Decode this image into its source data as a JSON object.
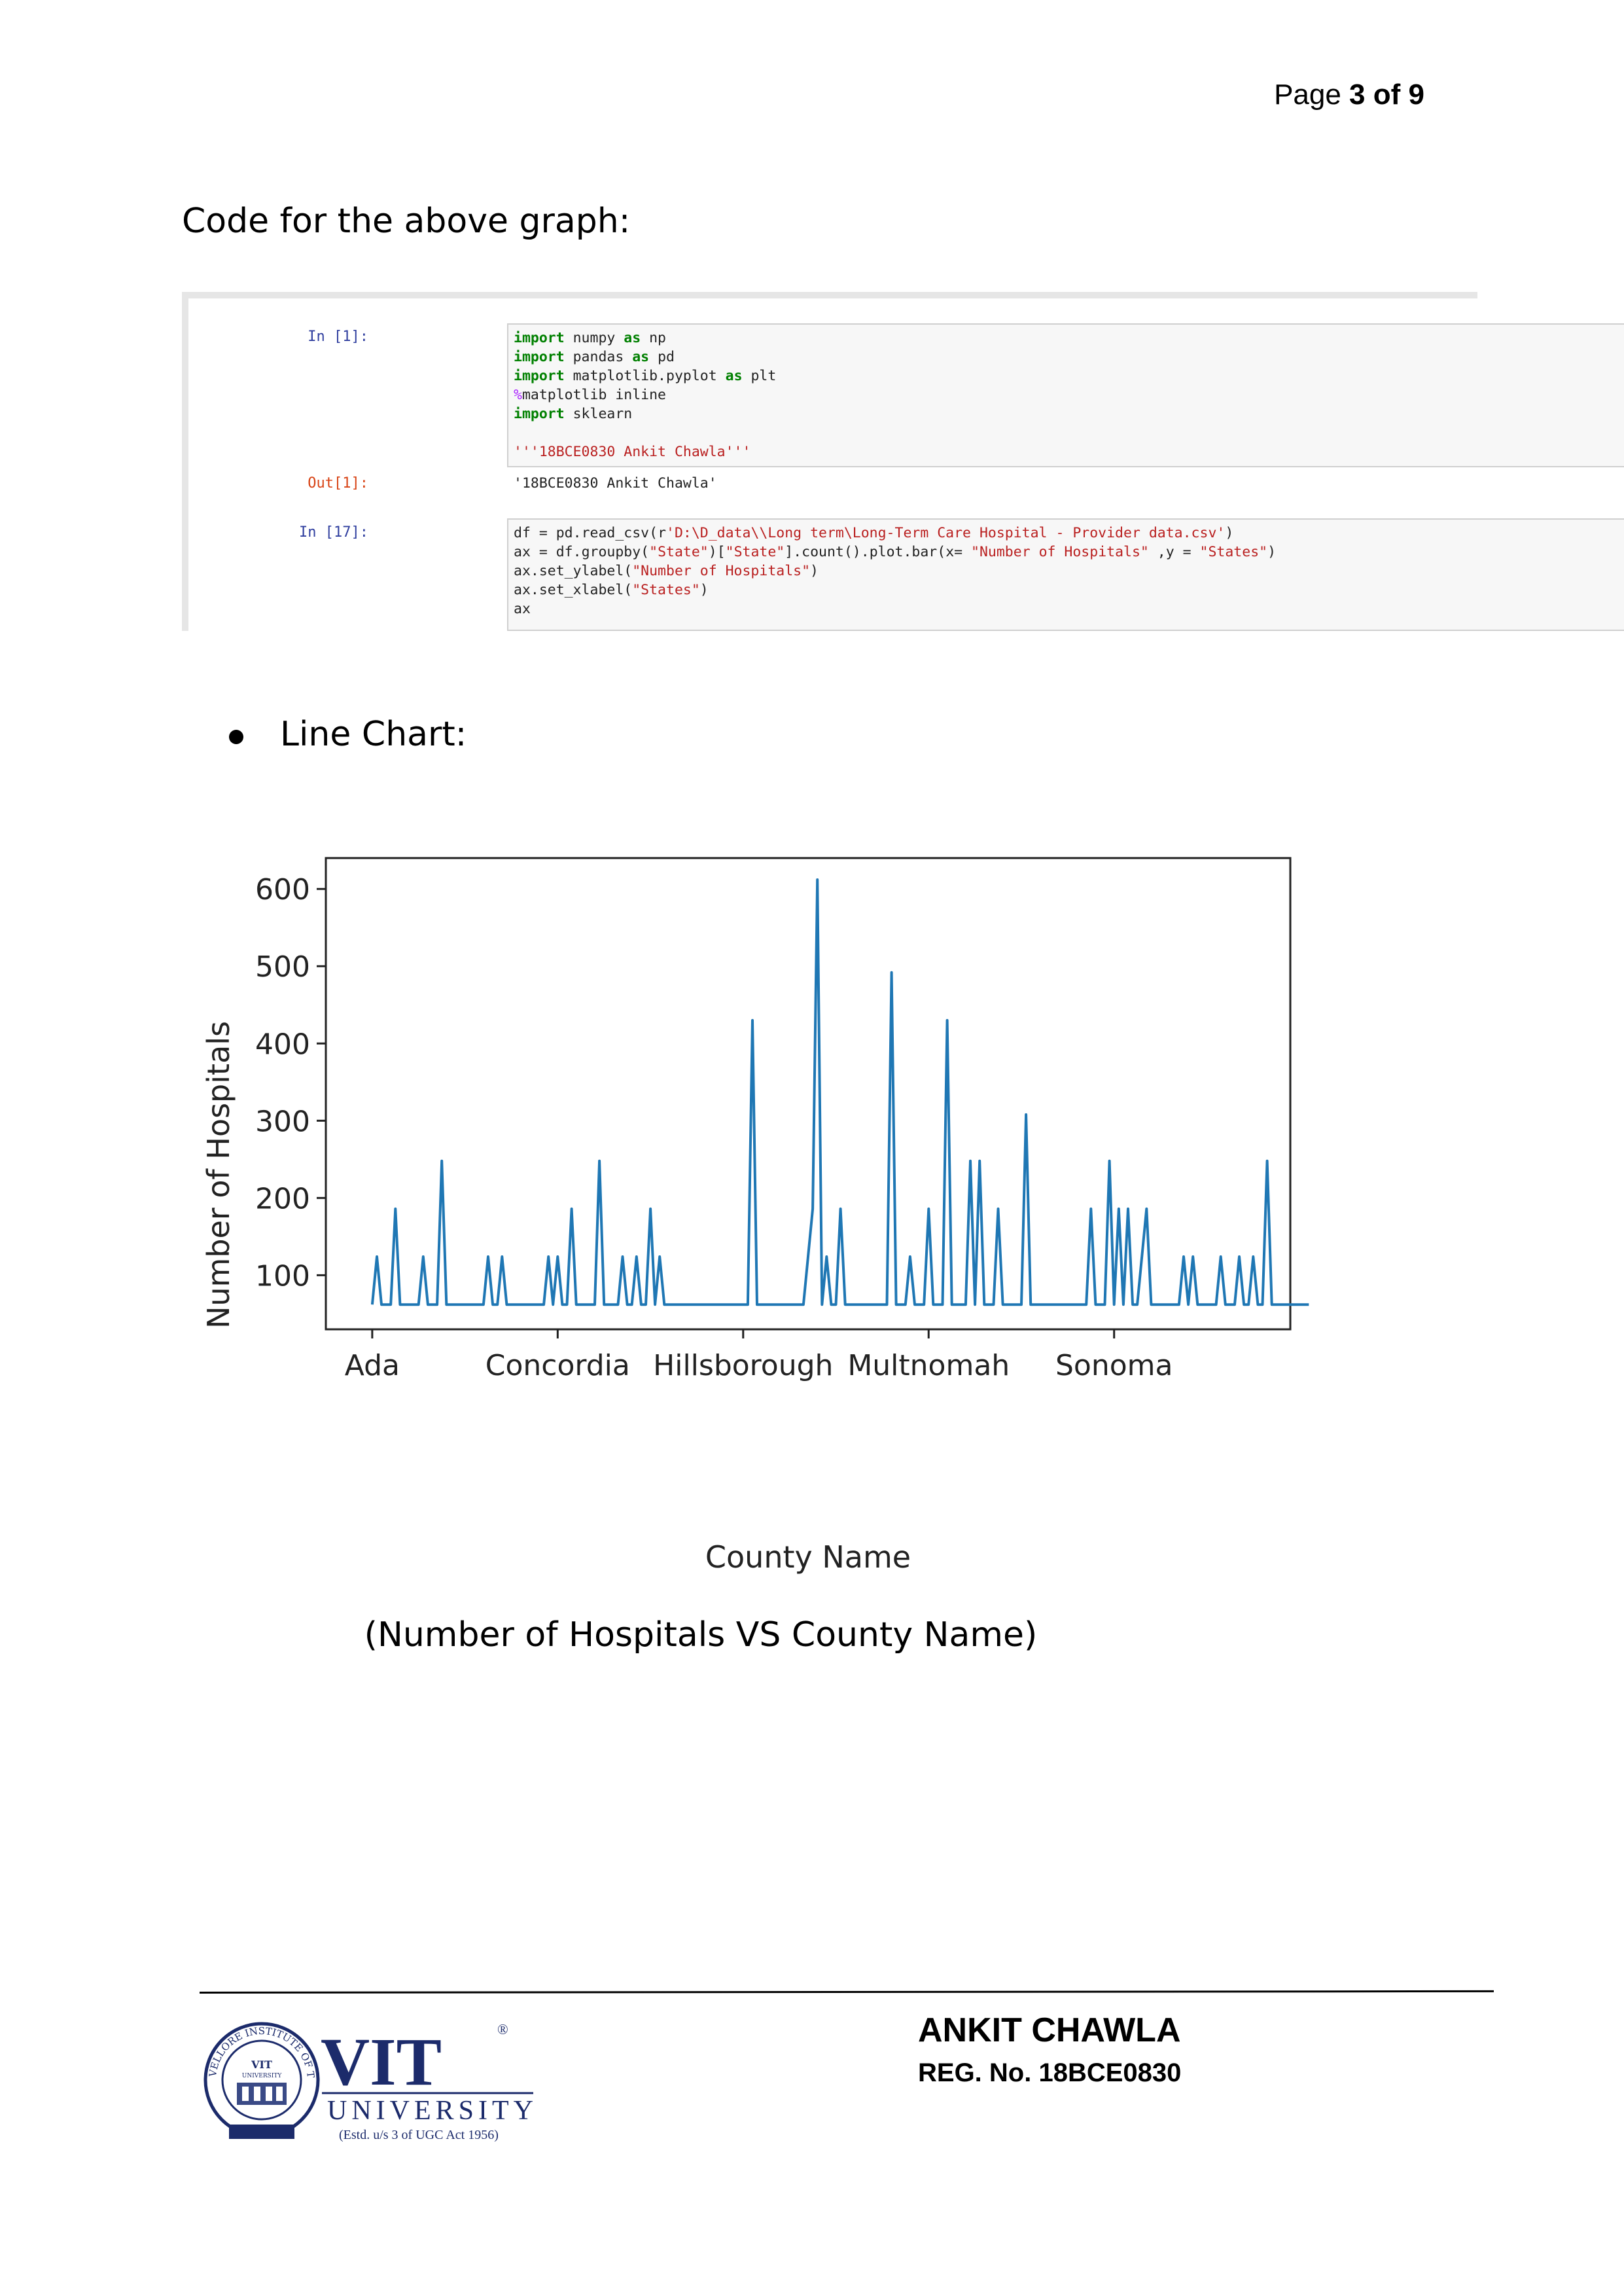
{
  "header": {
    "page_prefix": "Page ",
    "page_current": "3",
    "page_of": " of ",
    "page_total": "9"
  },
  "code_heading": "Code for the above graph:",
  "notebook": {
    "cell1_prompt": "In [1]:",
    "cell1_lines": [
      [
        {
          "t": "import",
          "c": "kw"
        },
        {
          "t": " numpy "
        },
        {
          "t": "as",
          "c": "kw"
        },
        {
          "t": " np"
        }
      ],
      [
        {
          "t": "import",
          "c": "kw"
        },
        {
          "t": " pandas "
        },
        {
          "t": "as",
          "c": "kw"
        },
        {
          "t": " pd"
        }
      ],
      [
        {
          "t": "import",
          "c": "kw"
        },
        {
          "t": " matplotlib.pyplot "
        },
        {
          "t": "as",
          "c": "kw"
        },
        {
          "t": " plt"
        }
      ],
      [
        {
          "t": "%",
          "c": "mag"
        },
        {
          "t": "matplotlib inline"
        }
      ],
      [
        {
          "t": "import",
          "c": "kw"
        },
        {
          "t": " sklearn"
        }
      ],
      [
        {
          "t": ""
        }
      ],
      [
        {
          "t": "'''18BCE0830 Ankit Chawla'''",
          "c": "str"
        }
      ]
    ],
    "out1_prompt": "Out[1]:",
    "out1_text": "'18BCE0830 Ankit Chawla'",
    "cell2_prompt": "In [17]:",
    "cell2_lines": [
      [
        {
          "t": "df "
        },
        {
          "t": "="
        },
        {
          "t": " pd.read_csv(r"
        },
        {
          "t": "'D:\\D_data\\\\Long term\\Long-Term Care Hospital - Provider data.csv'",
          "c": "str"
        },
        {
          "t": ")"
        }
      ],
      [
        {
          "t": "ax "
        },
        {
          "t": "="
        },
        {
          "t": " df.groupby("
        },
        {
          "t": "\"State\"",
          "c": "str"
        },
        {
          "t": ")["
        },
        {
          "t": "\"State\"",
          "c": "str"
        },
        {
          "t": "].count().plot.bar(x= "
        },
        {
          "t": "\"Number of Hospitals\"",
          "c": "str"
        },
        {
          "t": " ,y = "
        },
        {
          "t": "\"States\"",
          "c": "str"
        },
        {
          "t": ")"
        }
      ],
      [
        {
          "t": "ax.set_ylabel("
        },
        {
          "t": "\"Number of Hospitals\"",
          "c": "str"
        },
        {
          "t": ")"
        }
      ],
      [
        {
          "t": "ax.set_xlabel("
        },
        {
          "t": "\"States\"",
          "c": "str"
        },
        {
          "t": ")"
        }
      ],
      [
        {
          "t": "ax"
        }
      ]
    ]
  },
  "bullet_label": "Line Chart:",
  "chart_data": {
    "type": "line",
    "title": "",
    "xlabel": "County Name",
    "ylabel": "Number of Hospitals",
    "ylim": [
      30,
      640
    ],
    "yticks": [
      100,
      200,
      300,
      400,
      500,
      600
    ],
    "x_tick_labels": [
      "Ada",
      "Concordia",
      "Hillsborough",
      "Multnomah",
      "Sonoma"
    ],
    "x_tick_positions": [
      0,
      40,
      80,
      120,
      160
    ],
    "xlim": [
      -10,
      198
    ],
    "grid": false,
    "color": "#1f77b4",
    "series": [
      {
        "values": [
          62,
          124,
          62,
          62,
          62,
          186,
          62,
          62,
          62,
          62,
          62,
          124,
          62,
          62,
          62,
          248,
          62,
          62,
          62,
          62,
          62,
          62,
          62,
          62,
          62,
          124,
          62,
          62,
          124,
          62,
          62,
          62,
          62,
          62,
          62,
          62,
          62,
          62,
          124,
          62,
          124,
          62,
          62,
          186,
          62,
          62,
          62,
          62,
          62,
          248,
          62,
          62,
          62,
          62,
          124,
          62,
          62,
          124,
          62,
          62,
          186,
          62,
          124,
          62,
          62,
          62,
          62,
          62,
          62,
          62,
          62,
          62,
          62,
          62,
          62,
          62,
          62,
          62,
          62,
          62,
          62,
          62,
          430,
          62,
          62,
          62,
          62,
          62,
          62,
          62,
          62,
          62,
          62,
          62,
          124,
          186,
          612,
          62,
          124,
          62,
          62,
          186,
          62,
          62,
          62,
          62,
          62,
          62,
          62,
          62,
          62,
          62,
          492,
          62,
          62,
          62,
          124,
          62,
          62,
          62,
          186,
          62,
          62,
          62,
          430,
          62,
          62,
          62,
          62,
          248,
          62,
          248,
          62,
          62,
          62,
          186,
          62,
          62,
          62,
          62,
          62,
          308,
          62,
          62,
          62,
          62,
          62,
          62,
          62,
          62,
          62,
          62,
          62,
          62,
          62,
          186,
          62,
          62,
          62,
          248,
          62,
          186,
          62,
          186,
          62,
          62,
          124,
          186,
          62,
          62,
          62,
          62,
          62,
          62,
          62,
          124,
          62,
          124,
          62,
          62,
          62,
          62,
          62,
          124,
          62,
          62,
          62,
          124,
          62,
          62,
          124,
          62,
          62,
          248,
          62,
          62,
          62,
          62,
          62,
          62,
          62,
          62,
          62
        ]
      }
    ]
  },
  "caption": "(Number of Hospitals VS County Name)",
  "footer": {
    "author": "ANKIT CHAWLA",
    "reg_no": "REG. No. 18BCE0830",
    "logo_vit": "VIT",
    "logo_university": "UNIVERSITY",
    "logo_estd": "(Estd. u/s 3 of UGC Act 1956)",
    "logo_registered": "®",
    "seal_text": "VELLORE INSTITUTE OF TECHNOLOGY",
    "seal_inner": "VIT",
    "seal_inner_sub": "UNIVERSITY"
  }
}
